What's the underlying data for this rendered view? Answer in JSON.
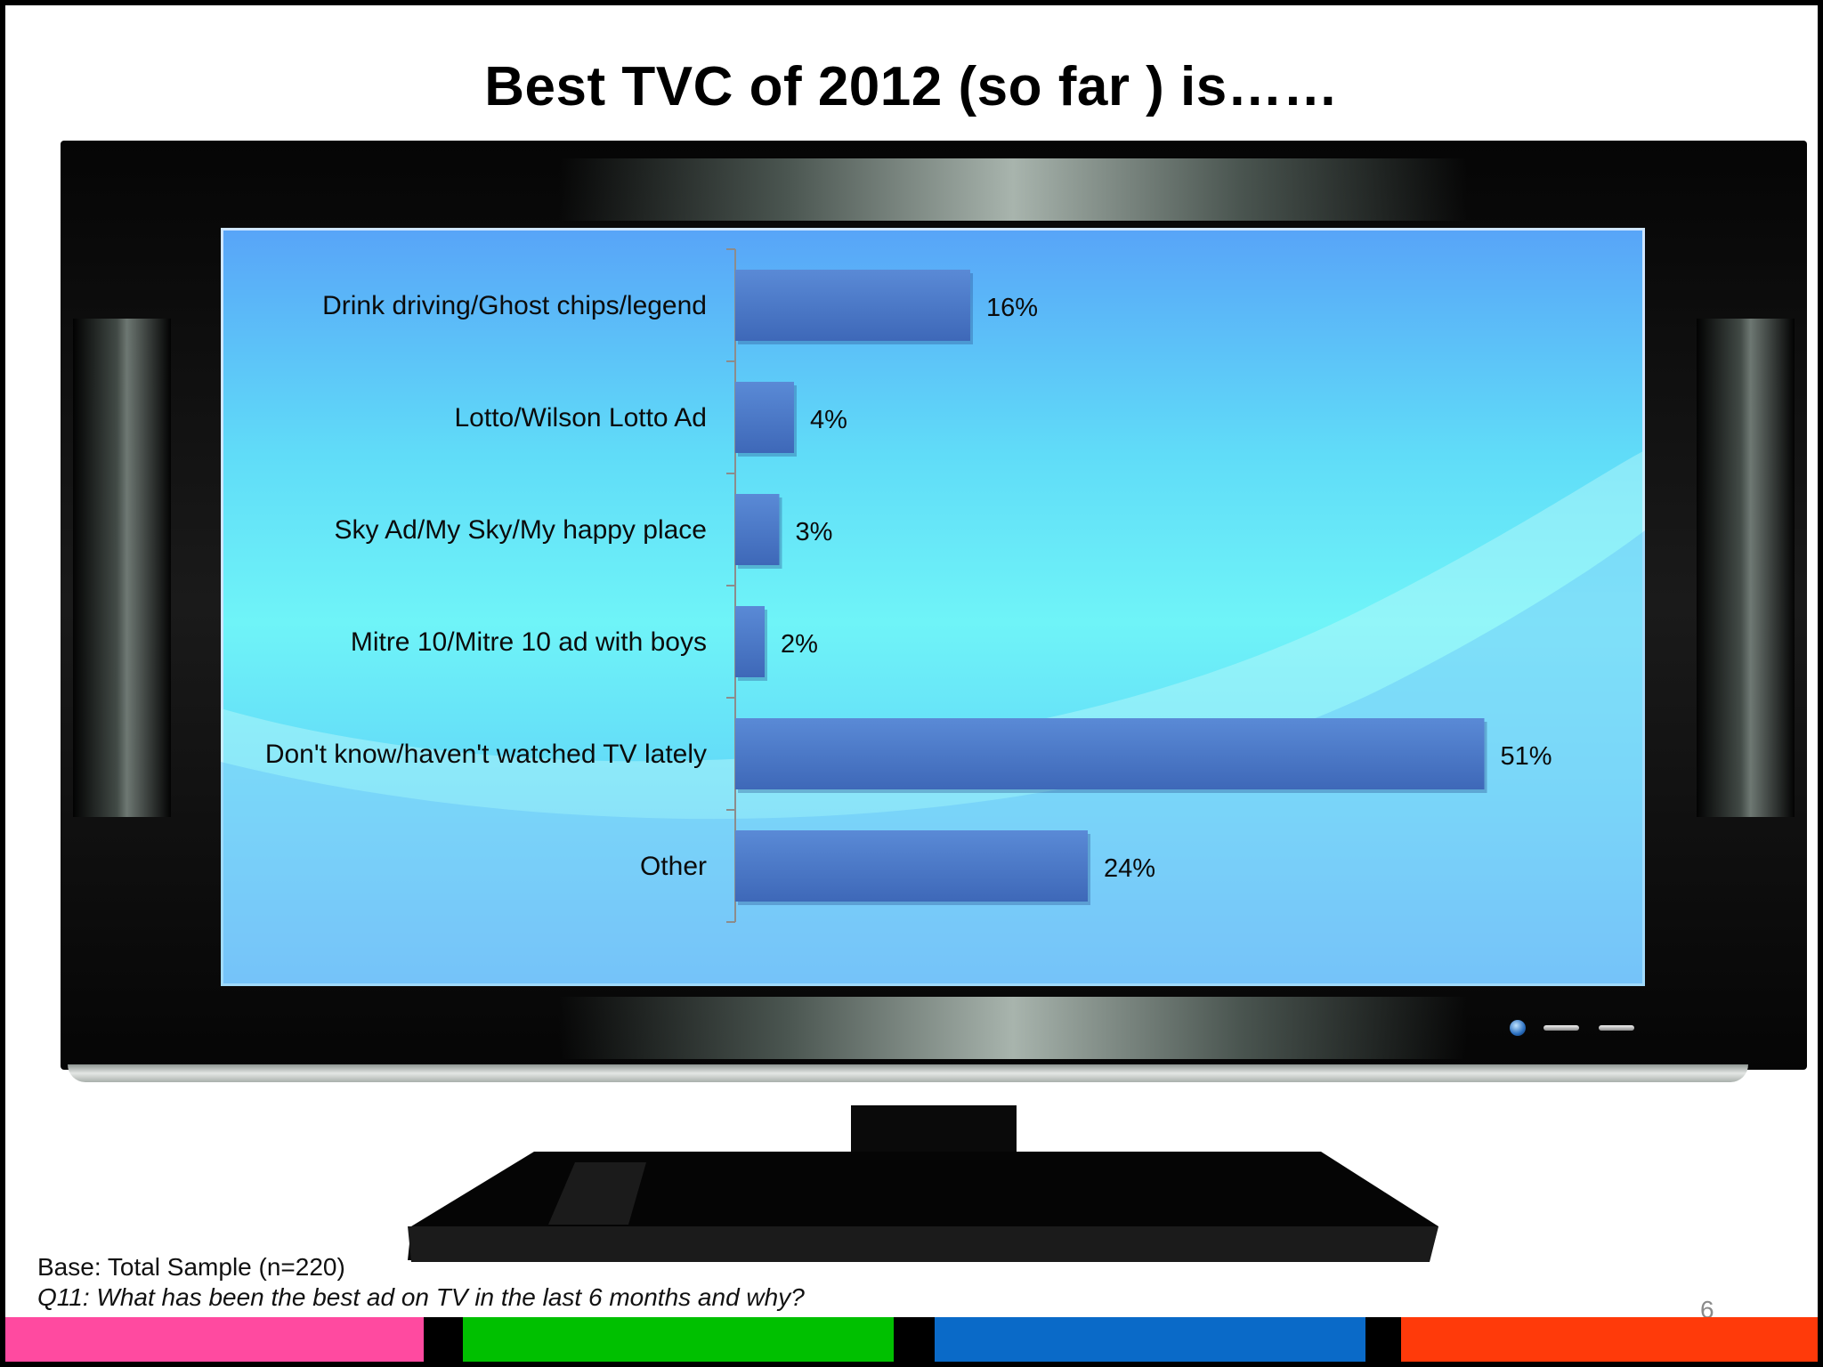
{
  "slide": {
    "title": "Best TVC of 2012 (so far ) is……",
    "base_note": "Base: Total Sample (n=220)",
    "question_note": "Q11: What has been the best ad on TV in the last 6 months and why?",
    "page_number": "6"
  },
  "chart_data": {
    "type": "bar",
    "orientation": "horizontal",
    "categories": [
      "Drink driving/Ghost chips/legend",
      "Lotto/Wilson Lotto Ad",
      "Sky Ad/My Sky/My happy place",
      "Mitre 10/Mitre 10 ad with boys",
      "Don't know/haven't watched TV lately",
      "Other"
    ],
    "values": [
      16,
      4,
      3,
      2,
      51,
      24
    ],
    "value_labels": [
      "16%",
      "4%",
      "3%",
      "2%",
      "51%",
      "24%"
    ],
    "unit": "%",
    "xlim": [
      0,
      60
    ],
    "bar_color": "#4a78c8",
    "grid": false,
    "legend": "none"
  },
  "colors": {
    "screen_top": "#58a4f8",
    "screen_mid": "#6ff4f8",
    "footer_pink": "#ff4aa0",
    "footer_green": "#00c000",
    "footer_blue": "#0a6ac8",
    "footer_red": "#ff3a0a"
  }
}
